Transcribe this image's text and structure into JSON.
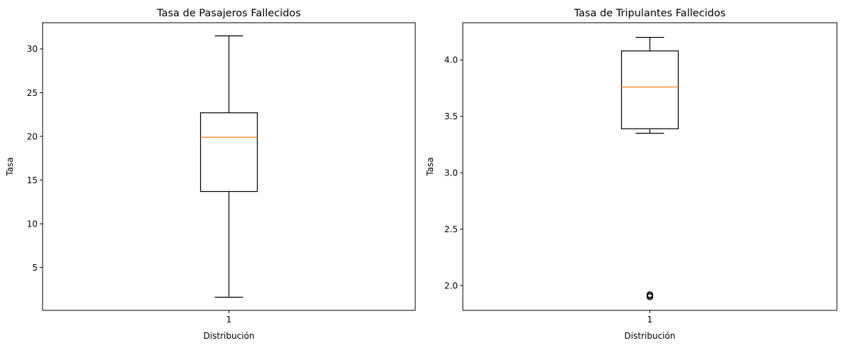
{
  "chart_data": [
    {
      "type": "box",
      "title": "Tasa de Pasajeros Fallecidos",
      "xlabel": "Distribución",
      "ylabel": "Tasa",
      "categories": [
        "1"
      ],
      "ylim": [
        0.1,
        33.0
      ],
      "yticks": [
        5,
        10,
        15,
        20,
        25,
        30
      ],
      "ytick_labels": [
        "5",
        "10",
        "15",
        "20",
        "25",
        "30"
      ],
      "box": {
        "whisker_low": 1.6,
        "q1": 13.7,
        "median": 19.9,
        "q3": 22.7,
        "whisker_high": 31.5
      },
      "outliers": [],
      "colors": {
        "box": "#000000",
        "median": "#ff7f0e"
      }
    },
    {
      "type": "box",
      "title": "Tasa de Tripulantes Fallecidos",
      "xlabel": "Distribución",
      "ylabel": "Tasa",
      "categories": [
        "1"
      ],
      "ylim": [
        1.78,
        4.33
      ],
      "yticks": [
        2.0,
        2.5,
        3.0,
        3.5,
        4.0
      ],
      "ytick_labels": [
        "2.0",
        "2.5",
        "3.0",
        "3.5",
        "4.0"
      ],
      "box": {
        "whisker_low": 3.35,
        "q1": 3.39,
        "median": 3.76,
        "q3": 4.08,
        "whisker_high": 4.2
      },
      "outliers": [
        1.9,
        1.91,
        1.92
      ],
      "colors": {
        "box": "#000000",
        "median": "#ff7f0e"
      }
    }
  ]
}
